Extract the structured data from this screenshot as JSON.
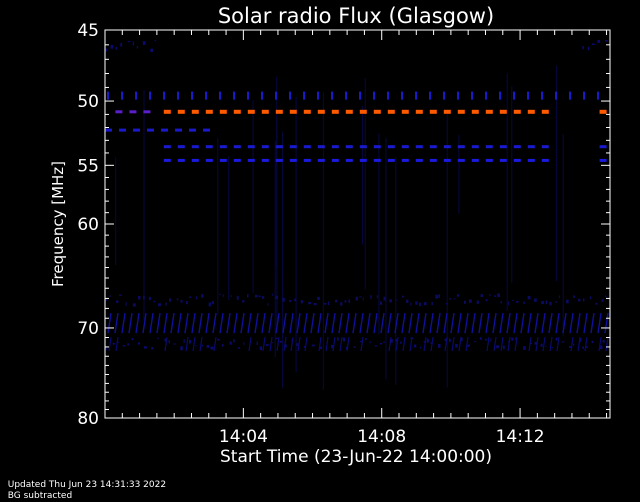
{
  "chart_data": {
    "type": "heatmap",
    "title": "Solar radio Flux (Glasgow)",
    "xlabel": "Start Time (23-Jun-22 14:00:00)",
    "ylabel": "Frequency [MHz]",
    "xlim_minutes": [
      0,
      14.6
    ],
    "ylim": [
      45,
      80
    ],
    "y_scale": "log",
    "yticks": [
      45,
      50,
      55,
      60,
      70,
      80
    ],
    "xticks": [
      {
        "minute": 4,
        "label": "14:04"
      },
      {
        "minute": 8,
        "label": "14:08"
      },
      {
        "minute": 12,
        "label": "14:12"
      }
    ],
    "features": [
      {
        "name": "",
        "freq_mhz": 50.8,
        "from_minute": 1.7,
        "to_minute": 13.0,
        "color": "#ff5a00",
        "style": "dashed",
        "level": "strong"
      },
      {
        "name": "",
        "freq_mhz": 50.8,
        "from_minute": 14.3,
        "to_minute": 14.6,
        "color": "#ff5a00",
        "style": "dashed",
        "level": "strong"
      },
      {
        "name": "",
        "freq_mhz": 50.8,
        "from_minute": 0.3,
        "to_minute": 1.2,
        "color": "#5a1ecc",
        "style": "dashed",
        "level": "medium"
      },
      {
        "name": "",
        "freq_mhz": 49.6,
        "from_minute": 0.0,
        "to_minute": 14.6,
        "color": "#1a1acc",
        "style": "ticks",
        "level": "medium"
      },
      {
        "name": "",
        "freq_mhz": 52.2,
        "from_minute": 0.0,
        "to_minute": 3.0,
        "color": "#1a1acc",
        "style": "dashed",
        "level": "medium"
      },
      {
        "name": "",
        "freq_mhz": 53.5,
        "from_minute": 1.7,
        "to_minute": 13.0,
        "color": "#1a1ad0",
        "style": "dashed",
        "level": "medium"
      },
      {
        "name": "",
        "freq_mhz": 54.6,
        "from_minute": 1.7,
        "to_minute": 13.0,
        "color": "#1a1ae0",
        "style": "dashed",
        "level": "medium"
      },
      {
        "name": "",
        "freq_mhz": 53.5,
        "from_minute": 14.3,
        "to_minute": 14.6,
        "color": "#1a1ad0",
        "style": "dashed",
        "level": "medium"
      },
      {
        "name": "",
        "freq_mhz": 54.6,
        "from_minute": 14.3,
        "to_minute": 14.6,
        "color": "#1a1ae0",
        "style": "dashed",
        "level": "medium"
      },
      {
        "name": "",
        "freq_mhz": 46.0,
        "from_minute": 0.0,
        "to_minute": 1.5,
        "color": "#0a0a70",
        "style": "speckle",
        "level": "weak"
      },
      {
        "name": "",
        "freq_mhz": 46.0,
        "from_minute": 13.8,
        "to_minute": 14.6,
        "color": "#0a0a70",
        "style": "speckle",
        "level": "weak"
      },
      {
        "name": "",
        "freq_mhz": 67.0,
        "from_minute": 0.0,
        "to_minute": 14.6,
        "color": "#0a0a60",
        "style": "speckle",
        "level": "weak"
      },
      {
        "name": "",
        "freq_mhz": 69.5,
        "from_minute": 0.0,
        "to_minute": 14.6,
        "color": "#10109a",
        "style": "diagonal",
        "level": "weak"
      },
      {
        "name": "",
        "freq_mhz": 71.5,
        "from_minute": 0.0,
        "to_minute": 14.6,
        "color": "#0a0a70",
        "style": "speckle",
        "level": "weak"
      }
    ],
    "background_color": "#000000",
    "axes_color": "#ffffff",
    "grid": false
  },
  "footer": {
    "updated": "Updated Thu Jun 23 14:31:33 2022",
    "note": "BG subtracted"
  }
}
